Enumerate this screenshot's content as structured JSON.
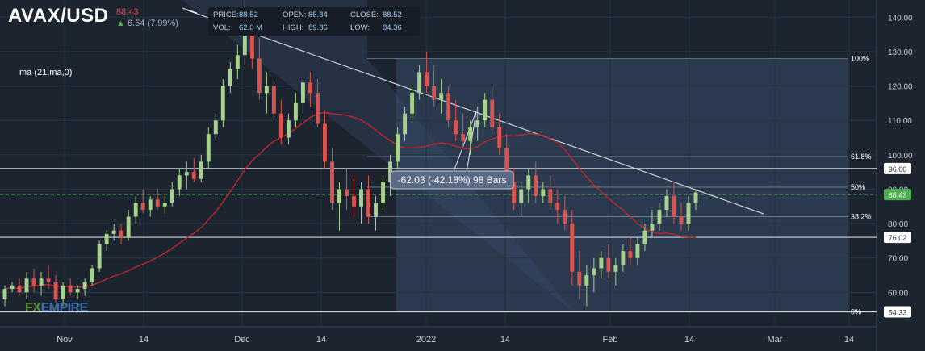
{
  "header": {
    "symbol": "AVAX/USD",
    "last_price": "88.43",
    "change": "6.54 (7.99%)",
    "ohlc": {
      "price_label": "PRICE:",
      "price": "88.52",
      "open_label": "OPEN:",
      "open": "85.84",
      "close_label": "CLOSE:",
      "close": "88.52",
      "vol_label": "VOL:",
      "vol": "62.0 M",
      "high_label": "HIGH:",
      "high": "89.86",
      "low_label": "LOW:",
      "low": "84.36"
    }
  },
  "indicator_label": "ma (21,ma,0)",
  "logo": {
    "fx": "FX",
    "empire": "EMPIRE"
  },
  "colors": {
    "background": "#1c2430",
    "bull": "#a7d28d",
    "bear": "#d9534f",
    "ma": "#c8262b",
    "line": "#e6e9ee",
    "fib_zone": "#3a4d6b",
    "price_tag": "#4caf50"
  },
  "chart_data": {
    "type": "candlestick",
    "title": "AVAX/USD",
    "x_ticks": [
      "Nov",
      "14",
      "Dec",
      "14",
      "2022",
      "14",
      "Feb",
      "14",
      "Mar",
      "14"
    ],
    "y_ticks": [
      60,
      70,
      80,
      90,
      100,
      110,
      120,
      130,
      140
    ],
    "ylim": [
      50,
      145
    ],
    "grid": true,
    "series_name": "AVAX/USD daily",
    "candles": [
      [
        58,
        62,
        56,
        61
      ],
      [
        61,
        63,
        60,
        62
      ],
      [
        62,
        64,
        59,
        60
      ],
      [
        60,
        66,
        58,
        64
      ],
      [
        64,
        67,
        60,
        62
      ],
      [
        62,
        66,
        59,
        64
      ],
      [
        64,
        68,
        61,
        63
      ],
      [
        63,
        65,
        57,
        58
      ],
      [
        58,
        63,
        56,
        62
      ],
      [
        62,
        64,
        59,
        60
      ],
      [
        60,
        62,
        58,
        61
      ],
      [
        61,
        64,
        59,
        63
      ],
      [
        63,
        68,
        62,
        67
      ],
      [
        67,
        75,
        66,
        74
      ],
      [
        74,
        78,
        72,
        77
      ],
      [
        77,
        80,
        75,
        78
      ],
      [
        78,
        80,
        74,
        76
      ],
      [
        76,
        84,
        75,
        82
      ],
      [
        82,
        88,
        80,
        86
      ],
      [
        86,
        90,
        83,
        84
      ],
      [
        84,
        88,
        82,
        87
      ],
      [
        87,
        90,
        84,
        85
      ],
      [
        85,
        88,
        83,
        86
      ],
      [
        86,
        92,
        85,
        90
      ],
      [
        90,
        96,
        88,
        94
      ],
      [
        94,
        98,
        90,
        95
      ],
      [
        95,
        99,
        92,
        93
      ],
      [
        93,
        100,
        92,
        98
      ],
      [
        98,
        108,
        96,
        106
      ],
      [
        106,
        112,
        104,
        110
      ],
      [
        110,
        122,
        108,
        120
      ],
      [
        120,
        127,
        118,
        125
      ],
      [
        125,
        132,
        122,
        129
      ],
      [
        129,
        146,
        126,
        135
      ],
      [
        135,
        140,
        125,
        128
      ],
      [
        128,
        134,
        116,
        118
      ],
      [
        118,
        124,
        112,
        120
      ],
      [
        120,
        122,
        110,
        112
      ],
      [
        112,
        116,
        103,
        105
      ],
      [
        105,
        112,
        103,
        110
      ],
      [
        110,
        118,
        108,
        115
      ],
      [
        115,
        122,
        112,
        121
      ],
      [
        121,
        124,
        114,
        118
      ],
      [
        118,
        122,
        108,
        109
      ],
      [
        109,
        113,
        96,
        98
      ],
      [
        98,
        102,
        84,
        86
      ],
      [
        86,
        92,
        78,
        90
      ],
      [
        90,
        96,
        84,
        88
      ],
      [
        88,
        94,
        82,
        85
      ],
      [
        85,
        92,
        80,
        90
      ],
      [
        90,
        94,
        80,
        82
      ],
      [
        82,
        88,
        78,
        86
      ],
      [
        86,
        94,
        84,
        92
      ],
      [
        92,
        100,
        88,
        98
      ],
      [
        98,
        108,
        96,
        106
      ],
      [
        106,
        114,
        104,
        112
      ],
      [
        112,
        120,
        110,
        118
      ],
      [
        118,
        126,
        116,
        124
      ],
      [
        124,
        130,
        118,
        120
      ],
      [
        120,
        126,
        114,
        116
      ],
      [
        116,
        122,
        112,
        118
      ],
      [
        118,
        120,
        108,
        110
      ],
      [
        110,
        116,
        104,
        106
      ],
      [
        106,
        112,
        102,
        104
      ],
      [
        104,
        110,
        100,
        108
      ],
      [
        108,
        114,
        104,
        110
      ],
      [
        110,
        118,
        108,
        116
      ],
      [
        116,
        120,
        106,
        108
      ],
      [
        108,
        112,
        100,
        102
      ],
      [
        102,
        106,
        90,
        92
      ],
      [
        92,
        96,
        84,
        86
      ],
      [
        86,
        92,
        82,
        90
      ],
      [
        90,
        96,
        86,
        94
      ],
      [
        94,
        98,
        86,
        88
      ],
      [
        88,
        92,
        86,
        90
      ],
      [
        90,
        94,
        84,
        86
      ],
      [
        86,
        90,
        80,
        84
      ],
      [
        84,
        88,
        78,
        80
      ],
      [
        80,
        84,
        62,
        66
      ],
      [
        66,
        72,
        58,
        62
      ],
      [
        62,
        68,
        56,
        65
      ],
      [
        65,
        70,
        60,
        67
      ],
      [
        67,
        72,
        64,
        70
      ],
      [
        70,
        74,
        64,
        66
      ],
      [
        66,
        70,
        62,
        68
      ],
      [
        68,
        74,
        66,
        72
      ],
      [
        72,
        76,
        68,
        70
      ],
      [
        70,
        76,
        68,
        74
      ],
      [
        74,
        80,
        72,
        78
      ],
      [
        78,
        84,
        76,
        80
      ],
      [
        80,
        86,
        78,
        84
      ],
      [
        84,
        90,
        82,
        88
      ],
      [
        88,
        92,
        80,
        82
      ],
      [
        82,
        86,
        78,
        80
      ],
      [
        80,
        88,
        78,
        86
      ],
      [
        86,
        90,
        84,
        89
      ]
    ],
    "ma_label": "ma (21,ma,0)",
    "price_labels": [
      "96.00",
      "88.43",
      "76.02",
      "54.33"
    ],
    "fib_levels": [
      {
        "label": "100%",
        "value": 128
      },
      {
        "label": "61.8%",
        "value": 99.5
      },
      {
        "label": "50%",
        "value": 90.6
      },
      {
        "label": "38.2%",
        "value": 82
      },
      {
        "label": "0%",
        "value": 54.33
      }
    ],
    "horizontal_levels": [
      96,
      76.02,
      54.33
    ],
    "measure_label": "-62.03 (-42.18%) 98 Bars"
  }
}
